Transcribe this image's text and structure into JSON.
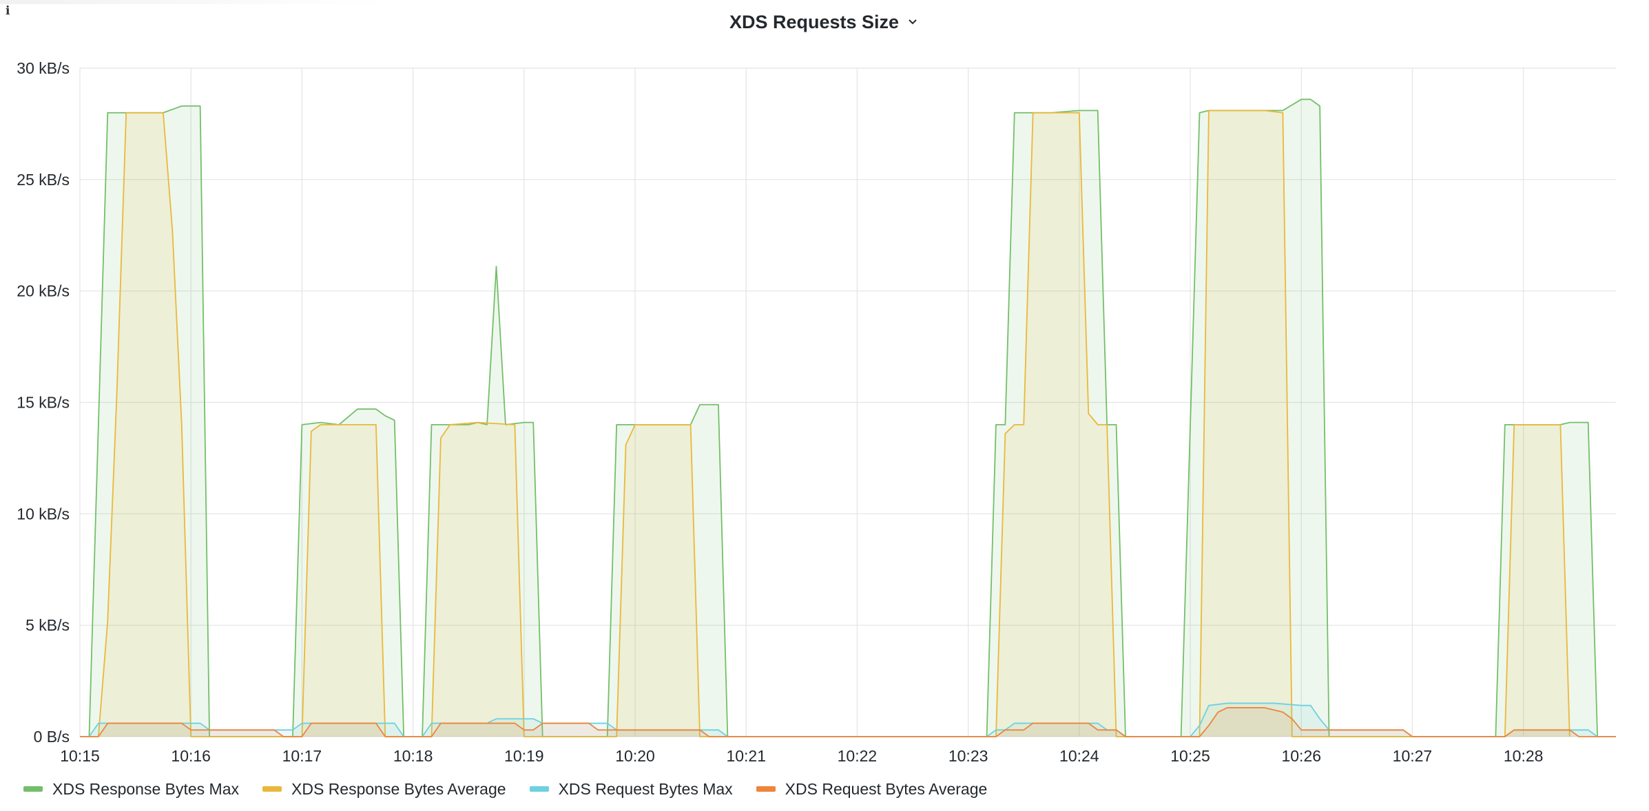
{
  "panel": {
    "title": "XDS Requests Size",
    "info_icon": "info-icon",
    "menu_icon": "chevron-down-icon"
  },
  "chart_data": {
    "type": "area",
    "title": "XDS Requests Size",
    "xlabel": "",
    "ylabel": "",
    "y_unit": "kB/s",
    "ylim": [
      0,
      30
    ],
    "y_ticks": [
      0,
      5,
      10,
      15,
      20,
      25,
      30
    ],
    "y_tick_labels": [
      "0 B/s",
      "5 kB/s",
      "10 kB/s",
      "15 kB/s",
      "20 kB/s",
      "25 kB/s",
      "30 kB/s"
    ],
    "xlim": [
      "10:15:00",
      "10:28:50"
    ],
    "x_ticks": [
      "10:15",
      "10:16",
      "10:17",
      "10:18",
      "10:19",
      "10:20",
      "10:21",
      "10:22",
      "10:23",
      "10:24",
      "10:25",
      "10:26",
      "10:27",
      "10:28"
    ],
    "grid": true,
    "legend_position": "bottom-left",
    "series": [
      {
        "name": "XDS Response Bytes Max",
        "color": "#73bf69",
        "fill": "#73bf69",
        "points": [
          [
            "10:15:05",
            0
          ],
          [
            "10:15:15",
            28.0
          ],
          [
            "10:15:25",
            28.0
          ],
          [
            "10:15:35",
            28.0
          ],
          [
            "10:15:45",
            28.0
          ],
          [
            "10:15:55",
            28.3
          ],
          [
            "10:16:05",
            28.3
          ],
          [
            "10:16:10",
            0
          ],
          [
            "10:16:55",
            0
          ],
          [
            "10:17:00",
            14.0
          ],
          [
            "10:17:10",
            14.1
          ],
          [
            "10:17:20",
            14.0
          ],
          [
            "10:17:30",
            14.7
          ],
          [
            "10:17:40",
            14.7
          ],
          [
            "10:17:45",
            14.4
          ],
          [
            "10:17:50",
            14.2
          ],
          [
            "10:17:55",
            0
          ],
          [
            "10:18:05",
            0
          ],
          [
            "10:18:10",
            14.0
          ],
          [
            "10:18:30",
            14.0
          ],
          [
            "10:18:35",
            14.1
          ],
          [
            "10:18:40",
            14.0
          ],
          [
            "10:18:45",
            21.1
          ],
          [
            "10:18:50",
            14.0
          ],
          [
            "10:19:00",
            14.1
          ],
          [
            "10:19:05",
            14.1
          ],
          [
            "10:19:10",
            0
          ],
          [
            "10:19:45",
            0
          ],
          [
            "10:19:50",
            14.0
          ],
          [
            "10:20:05",
            14.0
          ],
          [
            "10:20:15",
            14.0
          ],
          [
            "10:20:30",
            14.0
          ],
          [
            "10:20:35",
            14.9
          ],
          [
            "10:20:45",
            14.9
          ],
          [
            "10:20:50",
            0
          ],
          [
            "10:23:10",
            0
          ],
          [
            "10:23:15",
            14.0
          ],
          [
            "10:23:20",
            14.0
          ],
          [
            "10:23:25",
            28.0
          ],
          [
            "10:23:35",
            28.0
          ],
          [
            "10:23:45",
            28.0
          ],
          [
            "10:24:00",
            28.1
          ],
          [
            "10:24:10",
            28.1
          ],
          [
            "10:24:15",
            14.0
          ],
          [
            "10:24:20",
            14.0
          ],
          [
            "10:24:25",
            0
          ],
          [
            "10:24:55",
            0
          ],
          [
            "10:25:05",
            28.0
          ],
          [
            "10:25:10",
            28.1
          ],
          [
            "10:25:30",
            28.1
          ],
          [
            "10:25:40",
            28.1
          ],
          [
            "10:25:50",
            28.1
          ],
          [
            "10:26:00",
            28.6
          ],
          [
            "10:26:05",
            28.6
          ],
          [
            "10:26:10",
            28.3
          ],
          [
            "10:26:15",
            0
          ],
          [
            "10:27:45",
            0
          ],
          [
            "10:27:50",
            14.0
          ],
          [
            "10:28:00",
            14.0
          ],
          [
            "10:28:10",
            14.0
          ],
          [
            "10:28:20",
            14.0
          ],
          [
            "10:28:25",
            14.1
          ],
          [
            "10:28:35",
            14.1
          ],
          [
            "10:28:40",
            0
          ]
        ]
      },
      {
        "name": "XDS Response Bytes Average",
        "color": "#eab839",
        "fill": "#eab839",
        "points": [
          [
            "10:15:05",
            0
          ],
          [
            "10:15:10",
            0
          ],
          [
            "10:15:15",
            5.2
          ],
          [
            "10:15:20",
            15.5
          ],
          [
            "10:15:25",
            28.0
          ],
          [
            "10:15:35",
            28.0
          ],
          [
            "10:15:45",
            28.0
          ],
          [
            "10:15:50",
            22.7
          ],
          [
            "10:15:55",
            14.0
          ],
          [
            "10:16:00",
            0
          ],
          [
            "10:16:05",
            0
          ],
          [
            "10:17:00",
            0
          ],
          [
            "10:17:05",
            13.7
          ],
          [
            "10:17:10",
            14.0
          ],
          [
            "10:17:20",
            14.0
          ],
          [
            "10:17:35",
            14.0
          ],
          [
            "10:17:40",
            14.0
          ],
          [
            "10:17:45",
            0
          ],
          [
            "10:18:10",
            0
          ],
          [
            "10:18:15",
            13.4
          ],
          [
            "10:18:20",
            14.0
          ],
          [
            "10:18:35",
            14.1
          ],
          [
            "10:18:55",
            14.0
          ],
          [
            "10:19:00",
            0
          ],
          [
            "10:19:50",
            0
          ],
          [
            "10:19:55",
            13.1
          ],
          [
            "10:20:00",
            14.0
          ],
          [
            "10:20:15",
            14.0
          ],
          [
            "10:20:30",
            14.0
          ],
          [
            "10:20:35",
            0
          ],
          [
            "10:23:15",
            0
          ],
          [
            "10:23:20",
            13.6
          ],
          [
            "10:23:25",
            14.0
          ],
          [
            "10:23:30",
            14.0
          ],
          [
            "10:23:35",
            28.0
          ],
          [
            "10:23:45",
            28.0
          ],
          [
            "10:24:00",
            28.0
          ],
          [
            "10:24:05",
            14.5
          ],
          [
            "10:24:10",
            14.0
          ],
          [
            "10:24:15",
            14.0
          ],
          [
            "10:24:20",
            0
          ],
          [
            "10:25:05",
            0
          ],
          [
            "10:25:10",
            28.1
          ],
          [
            "10:25:25",
            28.1
          ],
          [
            "10:25:40",
            28.1
          ],
          [
            "10:25:50",
            28.0
          ],
          [
            "10:25:55",
            0
          ],
          [
            "10:27:50",
            0
          ],
          [
            "10:27:55",
            14.0
          ],
          [
            "10:28:10",
            14.0
          ],
          [
            "10:28:20",
            14.0
          ],
          [
            "10:28:25",
            0
          ]
        ]
      },
      {
        "name": "XDS Request Bytes Max",
        "color": "#6ed0e0",
        "fill": "#6ed0e0",
        "points": [
          [
            "10:15:00",
            0
          ],
          [
            "10:15:05",
            0
          ],
          [
            "10:15:10",
            0.6
          ],
          [
            "10:15:35",
            0.6
          ],
          [
            "10:15:55",
            0.6
          ],
          [
            "10:16:05",
            0.6
          ],
          [
            "10:16:10",
            0.3
          ],
          [
            "10:16:50",
            0.3
          ],
          [
            "10:16:55",
            0.3
          ],
          [
            "10:17:00",
            0.6
          ],
          [
            "10:17:20",
            0.6
          ],
          [
            "10:17:45",
            0.6
          ],
          [
            "10:17:50",
            0.6
          ],
          [
            "10:17:55",
            0.0
          ],
          [
            "10:18:05",
            0.0
          ],
          [
            "10:18:10",
            0.6
          ],
          [
            "10:18:40",
            0.6
          ],
          [
            "10:18:45",
            0.8
          ],
          [
            "10:19:05",
            0.8
          ],
          [
            "10:19:10",
            0.6
          ],
          [
            "10:19:40",
            0.6
          ],
          [
            "10:19:45",
            0.6
          ],
          [
            "10:19:50",
            0.3
          ],
          [
            "10:20:40",
            0.3
          ],
          [
            "10:20:45",
            0.3
          ],
          [
            "10:20:50",
            0.0
          ],
          [
            "10:23:10",
            0.0
          ],
          [
            "10:23:15",
            0.3
          ],
          [
            "10:23:20",
            0.3
          ],
          [
            "10:23:25",
            0.6
          ],
          [
            "10:23:40",
            0.6
          ],
          [
            "10:24:10",
            0.6
          ],
          [
            "10:24:15",
            0.3
          ],
          [
            "10:24:20",
            0.3
          ],
          [
            "10:24:25",
            0.0
          ],
          [
            "10:25:00",
            0.0
          ],
          [
            "10:25:05",
            0.5
          ],
          [
            "10:25:10",
            1.4
          ],
          [
            "10:25:20",
            1.5
          ],
          [
            "10:25:45",
            1.5
          ],
          [
            "10:26:00",
            1.4
          ],
          [
            "10:26:05",
            1.4
          ],
          [
            "10:26:10",
            0.8
          ],
          [
            "10:26:15",
            0.3
          ],
          [
            "10:26:55",
            0.3
          ],
          [
            "10:27:00",
            0.0
          ],
          [
            "10:27:50",
            0.0
          ],
          [
            "10:27:55",
            0.3
          ],
          [
            "10:28:20",
            0.3
          ],
          [
            "10:28:35",
            0.3
          ],
          [
            "10:28:40",
            0.0
          ],
          [
            "10:28:50",
            0.0
          ]
        ]
      },
      {
        "name": "XDS Request Bytes Average",
        "color": "#ef843c",
        "fill": "#ef843c",
        "points": [
          [
            "10:15:00",
            0
          ],
          [
            "10:15:10",
            0
          ],
          [
            "10:15:15",
            0.6
          ],
          [
            "10:15:35",
            0.6
          ],
          [
            "10:15:55",
            0.6
          ],
          [
            "10:16:00",
            0.3
          ],
          [
            "10:16:45",
            0.3
          ],
          [
            "10:16:50",
            0.0
          ],
          [
            "10:17:00",
            0.0
          ],
          [
            "10:17:05",
            0.6
          ],
          [
            "10:17:40",
            0.6
          ],
          [
            "10:17:45",
            0.0
          ],
          [
            "10:18:10",
            0.0
          ],
          [
            "10:18:15",
            0.6
          ],
          [
            "10:18:55",
            0.6
          ],
          [
            "10:19:00",
            0.3
          ],
          [
            "10:19:05",
            0.3
          ],
          [
            "10:19:10",
            0.6
          ],
          [
            "10:19:35",
            0.6
          ],
          [
            "10:19:40",
            0.3
          ],
          [
            "10:19:50",
            0.3
          ],
          [
            "10:20:00",
            0.3
          ],
          [
            "10:20:35",
            0.3
          ],
          [
            "10:20:40",
            0.0
          ],
          [
            "10:23:15",
            0.0
          ],
          [
            "10:23:20",
            0.3
          ],
          [
            "10:23:30",
            0.3
          ],
          [
            "10:23:35",
            0.6
          ],
          [
            "10:24:05",
            0.6
          ],
          [
            "10:24:10",
            0.3
          ],
          [
            "10:24:20",
            0.3
          ],
          [
            "10:24:25",
            0.0
          ],
          [
            "10:25:05",
            0.0
          ],
          [
            "10:25:10",
            0.5
          ],
          [
            "10:25:15",
            1.1
          ],
          [
            "10:25:20",
            1.3
          ],
          [
            "10:25:40",
            1.3
          ],
          [
            "10:25:50",
            1.1
          ],
          [
            "10:25:55",
            0.8
          ],
          [
            "10:26:00",
            0.3
          ],
          [
            "10:26:55",
            0.3
          ],
          [
            "10:27:00",
            0.0
          ],
          [
            "10:27:50",
            0.0
          ],
          [
            "10:27:55",
            0.3
          ],
          [
            "10:28:25",
            0.3
          ],
          [
            "10:28:30",
            0.0
          ],
          [
            "10:28:50",
            0.0
          ]
        ]
      }
    ]
  }
}
